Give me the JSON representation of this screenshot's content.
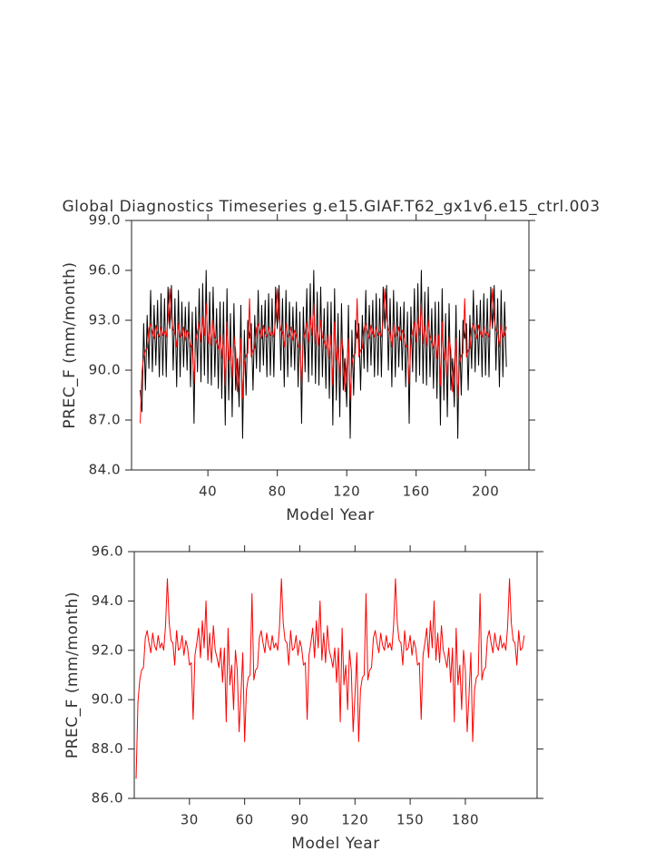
{
  "chart_data": [
    {
      "type": "line",
      "title": "Global Diagnostics Timeseries g.e15.GIAF.T62_gx1v6.e15_ctrl.003",
      "x_label": "Model Year",
      "y_label": "PREC_F (mm/month)",
      "xlim": [
        -4,
        225
      ],
      "xticks": [
        40,
        80,
        120,
        160,
        200
      ],
      "ylim": [
        84,
        99
      ],
      "yticks": [
        {
          "value": 84,
          "label": "84.0"
        },
        {
          "value": 87,
          "label": "87.0"
        },
        {
          "value": 90,
          "label": "90.0"
        },
        {
          "value": 93,
          "label": "93.0"
        },
        {
          "value": 96,
          "label": "96.0"
        },
        {
          "value": 99,
          "label": "99.0"
        }
      ],
      "x": [
        1,
        2,
        3,
        4,
        5,
        6,
        7,
        8,
        9,
        10,
        11,
        12,
        13,
        14,
        15,
        16,
        17,
        18,
        19,
        20,
        21,
        22,
        23,
        24,
        25,
        26,
        27,
        28,
        29,
        30,
        31,
        32,
        33,
        34,
        35,
        36,
        37,
        38,
        39,
        40,
        41,
        42,
        43,
        44,
        45,
        46,
        47,
        48,
        49,
        50,
        51,
        52,
        53,
        54,
        55,
        56,
        57,
        58,
        59,
        60,
        61,
        62,
        63,
        64,
        65,
        66,
        67,
        68,
        69,
        70,
        71,
        72,
        73,
        74,
        75,
        76,
        77,
        78,
        79,
        80,
        81,
        82,
        83,
        84,
        85,
        86,
        87,
        88,
        89,
        90,
        91,
        92,
        93,
        94,
        95,
        96,
        97,
        98,
        99,
        100,
        101,
        102,
        103,
        104,
        105,
        106,
        107,
        108,
        109,
        110,
        111,
        112,
        113,
        114,
        115,
        116,
        117,
        118,
        119,
        120,
        121,
        122,
        123,
        124,
        125,
        126,
        127,
        128,
        129,
        130,
        131,
        132,
        133,
        134,
        135,
        136,
        137,
        138,
        139,
        140,
        141,
        142,
        143,
        144,
        145,
        146,
        147,
        148,
        149,
        150,
        151,
        152,
        153,
        154,
        155,
        156,
        157,
        158,
        159,
        160,
        161,
        162,
        163,
        164,
        165,
        166,
        167,
        168,
        169,
        170,
        171,
        172,
        173,
        174,
        175,
        176,
        177,
        178,
        179,
        180,
        181,
        182,
        183,
        184,
        185,
        186,
        187,
        188,
        189,
        190,
        191,
        192,
        193,
        194,
        195,
        196,
        197,
        198,
        199,
        200,
        201,
        202,
        203,
        204,
        205,
        206,
        207,
        208,
        209,
        210,
        211,
        212
      ],
      "series": [
        {
          "color": "#000000",
          "values": [
            88.8,
            87.5,
            92.8,
            88.8,
            93.3,
            90.1,
            94.8,
            89.9,
            93.9,
            90.3,
            94.2,
            89.6,
            94.6,
            89.7,
            94.3,
            89.6,
            95.0,
            92.5,
            95.1,
            90.0,
            94.3,
            89.0,
            94.8,
            89.6,
            94.1,
            90.2,
            93.8,
            90.0,
            94.1,
            89.0,
            93.5,
            86.8,
            93.8,
            89.9,
            94.9,
            89.3,
            95.2,
            89.7,
            96.0,
            89.2,
            94.7,
            89.1,
            95.0,
            89.6,
            93.7,
            88.9,
            94.1,
            88.3,
            94.1,
            86.7,
            94.9,
            88.2,
            93.4,
            87.2,
            94.0,
            88.8,
            90.7,
            87.8,
            93.9,
            85.9,
            92.4,
            88.5,
            93.0,
            91.9,
            92.8,
            88.8,
            93.3,
            90.1,
            94.8,
            89.9,
            93.9,
            90.3,
            94.2,
            89.6,
            94.6,
            89.7,
            94.3,
            89.6,
            95.0,
            92.5,
            95.1,
            90.0,
            94.3,
            89.0,
            94.8,
            89.6,
            94.1,
            90.2,
            93.8,
            90.0,
            94.1,
            89.0,
            93.5,
            86.8,
            93.8,
            89.9,
            94.9,
            89.3,
            95.2,
            89.7,
            96.0,
            89.2,
            94.7,
            89.1,
            95.0,
            89.6,
            93.7,
            88.9,
            94.1,
            88.3,
            94.1,
            86.7,
            94.9,
            88.2,
            93.4,
            87.2,
            94.0,
            88.8,
            90.7,
            87.8,
            93.9,
            85.9,
            92.4,
            88.5,
            93.0,
            91.9,
            92.8,
            88.8,
            93.3,
            90.1,
            94.8,
            89.9,
            93.9,
            90.3,
            94.2,
            89.6,
            94.6,
            89.7,
            94.3,
            89.6,
            95.0,
            92.5,
            95.1,
            90.0,
            94.3,
            89.0,
            94.8,
            89.6,
            94.1,
            90.2,
            93.8,
            90.0,
            94.1,
            89.0,
            93.5,
            86.8,
            93.8,
            89.9,
            94.9,
            89.3,
            95.2,
            89.7,
            96.0,
            89.2,
            94.7,
            89.1,
            95.0,
            89.6,
            93.7,
            88.9,
            94.1,
            88.3,
            94.1,
            86.7,
            94.9,
            88.2,
            93.4,
            87.2,
            94.0,
            88.8,
            90.7,
            87.8,
            93.9,
            85.9,
            92.4,
            88.5,
            93.0,
            91.9,
            92.8,
            88.8,
            93.3,
            90.1,
            94.8,
            89.9,
            93.9,
            90.3,
            94.2,
            89.6,
            94.6,
            89.7,
            94.3,
            89.6,
            95.0,
            92.5,
            95.1,
            90.0,
            94.3,
            89.0,
            94.8,
            89.6,
            94.1,
            90.2
          ]
        },
        {
          "color": "#ff0000",
          "values": [
            86.8,
            89.9,
            90.8,
            91.2,
            91.3,
            92.5,
            92.8,
            92.3,
            91.9,
            92.7,
            92.2,
            92.0,
            92.6,
            92.1,
            92.3,
            92.0,
            93.0,
            94.9,
            93.1,
            92.4,
            92.3,
            91.4,
            92.8,
            92.0,
            92.1,
            92.6,
            91.8,
            92.4,
            92.1,
            91.4,
            91.5,
            89.2,
            91.8,
            92.3,
            92.9,
            91.7,
            93.2,
            92.1,
            94.0,
            91.6,
            92.7,
            91.5,
            93.0,
            92.0,
            91.7,
            91.3,
            92.1,
            90.7,
            92.1,
            89.1,
            92.9,
            90.6,
            91.4,
            89.6,
            92.0,
            91.2,
            88.7,
            90.2,
            91.9,
            88.3,
            90.4,
            90.9,
            91.0,
            94.3,
            90.8,
            91.2,
            91.3,
            92.5,
            92.8,
            92.3,
            91.9,
            92.7,
            92.2,
            92.0,
            92.6,
            92.1,
            92.3,
            92.0,
            93.0,
            94.9,
            93.1,
            92.4,
            92.3,
            91.4,
            92.8,
            92.0,
            92.1,
            92.6,
            91.8,
            92.4,
            92.1,
            91.4,
            91.5,
            89.2,
            91.8,
            92.3,
            92.9,
            91.7,
            93.2,
            92.1,
            94.0,
            91.6,
            92.7,
            91.5,
            93.0,
            92.0,
            91.7,
            91.3,
            92.1,
            90.7,
            92.1,
            89.1,
            92.9,
            90.6,
            91.4,
            89.6,
            92.0,
            91.2,
            88.7,
            90.2,
            91.9,
            88.3,
            90.4,
            90.9,
            91.0,
            94.3,
            90.8,
            91.2,
            91.3,
            92.5,
            92.8,
            92.3,
            91.9,
            92.7,
            92.2,
            92.0,
            92.6,
            92.1,
            92.3,
            92.0,
            93.0,
            94.9,
            93.1,
            92.4,
            92.3,
            91.4,
            92.8,
            92.0,
            92.1,
            92.6,
            91.8,
            92.4,
            92.1,
            91.4,
            91.5,
            89.2,
            91.8,
            92.3,
            92.9,
            91.7,
            93.2,
            92.1,
            94.0,
            91.6,
            92.7,
            91.5,
            93.0,
            92.0,
            91.7,
            91.3,
            92.1,
            90.7,
            92.1,
            89.1,
            92.9,
            90.6,
            91.4,
            89.6,
            92.0,
            91.2,
            88.7,
            90.2,
            91.9,
            88.3,
            90.4,
            90.9,
            91.0,
            94.3,
            90.8,
            91.2,
            91.3,
            92.5,
            92.8,
            92.3,
            91.9,
            92.7,
            92.2,
            92.0,
            92.6,
            92.1,
            92.3,
            92.0,
            93.0,
            94.9,
            93.1,
            92.4,
            92.3,
            91.4,
            92.8,
            92.0,
            92.1,
            92.6
          ]
        }
      ]
    },
    {
      "type": "line",
      "x_label": "Model Year",
      "y_label": "PREC_F (mm/month)",
      "xlim": [
        0,
        219
      ],
      "xticks": [
        30,
        60,
        90,
        120,
        150,
        180
      ],
      "ylim": [
        86,
        96
      ],
      "yticks": [
        {
          "value": 86,
          "label": "86.0"
        },
        {
          "value": 88,
          "label": "88.0"
        },
        {
          "value": 90,
          "label": "90.0"
        },
        {
          "value": 92,
          "label": "92.0"
        },
        {
          "value": 94,
          "label": "94.0"
        },
        {
          "value": 96,
          "label": "96.0"
        }
      ],
      "x": [
        1,
        2,
        3,
        4,
        5,
        6,
        7,
        8,
        9,
        10,
        11,
        12,
        13,
        14,
        15,
        16,
        17,
        18,
        19,
        20,
        21,
        22,
        23,
        24,
        25,
        26,
        27,
        28,
        29,
        30,
        31,
        32,
        33,
        34,
        35,
        36,
        37,
        38,
        39,
        40,
        41,
        42,
        43,
        44,
        45,
        46,
        47,
        48,
        49,
        50,
        51,
        52,
        53,
        54,
        55,
        56,
        57,
        58,
        59,
        60,
        61,
        62,
        63,
        64,
        65,
        66,
        67,
        68,
        69,
        70,
        71,
        72,
        73,
        74,
        75,
        76,
        77,
        78,
        79,
        80,
        81,
        82,
        83,
        84,
        85,
        86,
        87,
        88,
        89,
        90,
        91,
        92,
        93,
        94,
        95,
        96,
        97,
        98,
        99,
        100,
        101,
        102,
        103,
        104,
        105,
        106,
        107,
        108,
        109,
        110,
        111,
        112,
        113,
        114,
        115,
        116,
        117,
        118,
        119,
        120,
        121,
        122,
        123,
        124,
        125,
        126,
        127,
        128,
        129,
        130,
        131,
        132,
        133,
        134,
        135,
        136,
        137,
        138,
        139,
        140,
        141,
        142,
        143,
        144,
        145,
        146,
        147,
        148,
        149,
        150,
        151,
        152,
        153,
        154,
        155,
        156,
        157,
        158,
        159,
        160,
        161,
        162,
        163,
        164,
        165,
        166,
        167,
        168,
        169,
        170,
        171,
        172,
        173,
        174,
        175,
        176,
        177,
        178,
        179,
        180,
        181,
        182,
        183,
        184,
        185,
        186,
        187,
        188,
        189,
        190,
        191,
        192,
        193,
        194,
        195,
        196,
        197,
        198,
        199,
        200,
        201,
        202,
        203,
        204,
        205,
        206,
        207,
        208,
        209,
        210,
        211,
        212
      ],
      "series": [
        {
          "color": "#ff0000",
          "values": [
            86.8,
            89.9,
            90.8,
            91.2,
            91.3,
            92.5,
            92.8,
            92.3,
            91.9,
            92.7,
            92.2,
            92.0,
            92.6,
            92.1,
            92.3,
            92.0,
            93.0,
            94.9,
            93.1,
            92.4,
            92.3,
            91.4,
            92.8,
            92.0,
            92.1,
            92.6,
            91.8,
            92.4,
            92.1,
            91.4,
            91.5,
            89.2,
            91.8,
            92.3,
            92.9,
            91.7,
            93.2,
            92.1,
            94.0,
            91.6,
            92.7,
            91.5,
            93.0,
            92.0,
            91.7,
            91.3,
            92.1,
            90.7,
            92.1,
            89.1,
            92.9,
            90.6,
            91.4,
            89.6,
            92.0,
            91.2,
            88.7,
            90.2,
            91.9,
            88.3,
            90.4,
            90.9,
            91.0,
            94.3,
            90.8,
            91.2,
            91.3,
            92.5,
            92.8,
            92.3,
            91.9,
            92.7,
            92.2,
            92.0,
            92.6,
            92.1,
            92.3,
            92.0,
            93.0,
            94.9,
            93.1,
            92.4,
            92.3,
            91.4,
            92.8,
            92.0,
            92.1,
            92.6,
            91.8,
            92.4,
            92.1,
            91.4,
            91.5,
            89.2,
            91.8,
            92.3,
            92.9,
            91.7,
            93.2,
            92.1,
            94.0,
            91.6,
            92.7,
            91.5,
            93.0,
            92.0,
            91.7,
            91.3,
            92.1,
            90.7,
            92.1,
            89.1,
            92.9,
            90.6,
            91.4,
            89.6,
            92.0,
            91.2,
            88.7,
            90.2,
            91.9,
            88.3,
            90.4,
            90.9,
            91.0,
            94.3,
            90.8,
            91.2,
            91.3,
            92.5,
            92.8,
            92.3,
            91.9,
            92.7,
            92.2,
            92.0,
            92.6,
            92.1,
            92.3,
            92.0,
            93.0,
            94.9,
            93.1,
            92.4,
            92.3,
            91.4,
            92.8,
            92.0,
            92.1,
            92.6,
            91.8,
            92.4,
            92.1,
            91.4,
            91.5,
            89.2,
            91.8,
            92.3,
            92.9,
            91.7,
            93.2,
            92.1,
            94.0,
            91.6,
            92.7,
            91.5,
            93.0,
            92.0,
            91.7,
            91.3,
            92.1,
            90.7,
            92.1,
            89.1,
            92.9,
            90.6,
            91.4,
            89.6,
            92.0,
            91.2,
            88.7,
            90.2,
            91.9,
            88.3,
            90.4,
            90.9,
            91.0,
            94.3,
            90.8,
            91.2,
            91.3,
            92.5,
            92.8,
            92.3,
            91.9,
            92.7,
            92.2,
            92.0,
            92.6,
            92.1,
            92.3,
            92.0,
            93.0,
            94.9,
            93.1,
            92.4,
            92.3,
            91.4,
            92.8,
            92.0,
            92.1,
            92.6
          ]
        }
      ]
    }
  ]
}
